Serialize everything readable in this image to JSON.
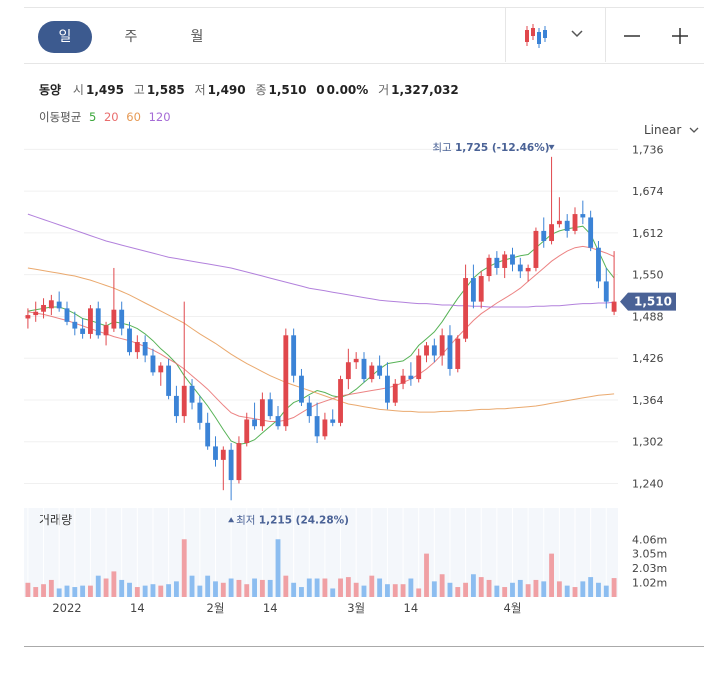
{
  "tabs": [
    {
      "label": "일",
      "active": true
    },
    {
      "label": "주",
      "active": false
    },
    {
      "label": "월",
      "active": false
    }
  ],
  "toolbar": {
    "chart_type_icon": "candlestick-icon",
    "dropdown_icon": "chevron-down-icon",
    "zoom_out_icon": "minus-icon",
    "zoom_in_icon": "plus-icon"
  },
  "stock": {
    "name": "동양",
    "open_label": "시",
    "open": "1,495",
    "high_label": "고",
    "high": "1,585",
    "low_label": "저",
    "low": "1,490",
    "close_label": "종",
    "close": "1,510",
    "change": "0",
    "change_pct": "0.00%",
    "volume_label": "거",
    "volume": "1,327,032"
  },
  "ma_legend": {
    "label": "이동평균",
    "items": [
      {
        "label": "5",
        "color": "#3aa63a"
      },
      {
        "label": "20",
        "color": "#e96d6d"
      },
      {
        "label": "60",
        "color": "#e69a55"
      },
      {
        "label": "120",
        "color": "#a56bd6"
      }
    ]
  },
  "scale_mode": "Linear",
  "volume_panel_label": "거래량",
  "colors": {
    "up": "#e0474c",
    "down": "#3b83d6",
    "up_vol": "#f0a0a4",
    "down_vol": "#8cbdf0",
    "price_tag": "#4a6296"
  },
  "chart_data": {
    "type": "candlestick",
    "price_axis": {
      "ticks": [
        1736,
        1674,
        1612,
        1550,
        1488,
        1426,
        1364,
        1302,
        1240
      ],
      "tick_labels": [
        "1,736",
        "1,674",
        "1,612",
        "1,550",
        "1,488",
        "1,426",
        "1,364",
        "1,302",
        "1,240"
      ],
      "range": [
        1208,
        1750
      ]
    },
    "volume_axis": {
      "ticks": [
        4.06,
        3.05,
        2.03,
        1.02
      ],
      "tick_labels": [
        "4.06m",
        "3.05m",
        "2.03m",
        "1.02m"
      ],
      "unit": "m",
      "range": [
        0,
        4.5
      ]
    },
    "x_labels": [
      {
        "label": "2022",
        "index": 5
      },
      {
        "label": "14",
        "index": 14
      },
      {
        "label": "2월",
        "index": 24
      },
      {
        "label": "14",
        "index": 31
      },
      {
        "label": "3월",
        "index": 42
      },
      {
        "label": "14",
        "index": 49
      },
      {
        "label": "4월",
        "index": 62
      }
    ],
    "candles": [
      [
        1485,
        1500,
        1470,
        1490,
        1.0
      ],
      [
        1490,
        1510,
        1480,
        1495,
        0.7
      ],
      [
        1495,
        1515,
        1485,
        1505,
        0.9
      ],
      [
        1500,
        1520,
        1490,
        1512,
        1.2
      ],
      [
        1510,
        1525,
        1495,
        1500,
        0.6
      ],
      [
        1500,
        1510,
        1475,
        1480,
        0.8
      ],
      [
        1480,
        1495,
        1460,
        1470,
        0.7
      ],
      [
        1470,
        1485,
        1455,
        1462,
        0.8
      ],
      [
        1462,
        1505,
        1455,
        1500,
        0.8
      ],
      [
        1500,
        1510,
        1455,
        1460,
        1.5
      ],
      [
        1460,
        1480,
        1445,
        1475,
        1.3
      ],
      [
        1470,
        1560,
        1465,
        1498,
        1.8
      ],
      [
        1498,
        1510,
        1460,
        1470,
        1.2
      ],
      [
        1470,
        1480,
        1430,
        1435,
        1.0
      ],
      [
        1435,
        1460,
        1425,
        1450,
        0.7
      ],
      [
        1450,
        1460,
        1420,
        1430,
        0.8
      ],
      [
        1430,
        1440,
        1400,
        1405,
        0.9
      ],
      [
        1405,
        1420,
        1385,
        1415,
        0.8
      ],
      [
        1415,
        1425,
        1365,
        1370,
        0.9
      ],
      [
        1370,
        1385,
        1330,
        1340,
        1.1
      ],
      [
        1340,
        1510,
        1330,
        1385,
        4.06
      ],
      [
        1385,
        1395,
        1350,
        1360,
        1.5
      ],
      [
        1360,
        1370,
        1320,
        1330,
        0.8
      ],
      [
        1330,
        1345,
        1290,
        1295,
        1.5
      ],
      [
        1295,
        1310,
        1265,
        1275,
        1.1
      ],
      [
        1275,
        1295,
        1230,
        1290,
        1.0
      ],
      [
        1290,
        1300,
        1215,
        1245,
        1.3
      ],
      [
        1245,
        1310,
        1240,
        1300,
        1.2
      ],
      [
        1300,
        1345,
        1295,
        1335,
        0.9
      ],
      [
        1335,
        1360,
        1320,
        1325,
        1.3
      ],
      [
        1325,
        1375,
        1318,
        1365,
        1.2
      ],
      [
        1365,
        1375,
        1335,
        1340,
        1.2
      ],
      [
        1340,
        1355,
        1320,
        1325,
        4.06
      ],
      [
        1325,
        1470,
        1318,
        1460,
        1.5
      ],
      [
        1460,
        1470,
        1390,
        1400,
        1.0
      ],
      [
        1400,
        1410,
        1355,
        1360,
        0.7
      ],
      [
        1360,
        1370,
        1330,
        1340,
        1.3
      ],
      [
        1340,
        1360,
        1300,
        1310,
        1.3
      ],
      [
        1310,
        1345,
        1305,
        1335,
        1.3
      ],
      [
        1335,
        1350,
        1325,
        1330,
        0.6
      ],
      [
        1330,
        1400,
        1325,
        1395,
        1.3
      ],
      [
        1395,
        1440,
        1380,
        1420,
        1.4
      ],
      [
        1420,
        1435,
        1410,
        1425,
        1.0
      ],
      [
        1425,
        1435,
        1390,
        1395,
        0.8
      ],
      [
        1395,
        1420,
        1390,
        1415,
        1.5
      ],
      [
        1415,
        1430,
        1395,
        1400,
        1.3
      ],
      [
        1400,
        1420,
        1350,
        1360,
        0.9
      ],
      [
        1360,
        1395,
        1355,
        1388,
        0.9
      ],
      [
        1388,
        1410,
        1380,
        1400,
        0.9
      ],
      [
        1400,
        1420,
        1385,
        1395,
        1.3
      ],
      [
        1395,
        1440,
        1390,
        1430,
        0.6
      ],
      [
        1430,
        1450,
        1420,
        1445,
        3.05
      ],
      [
        1445,
        1455,
        1420,
        1430,
        1.1
      ],
      [
        1430,
        1470,
        1415,
        1460,
        1.6
      ],
      [
        1460,
        1475,
        1400,
        1410,
        1.0
      ],
      [
        1410,
        1460,
        1405,
        1455,
        0.7
      ],
      [
        1455,
        1565,
        1450,
        1545,
        1.0
      ],
      [
        1545,
        1565,
        1500,
        1510,
        1.6
      ],
      [
        1510,
        1555,
        1500,
        1548,
        1.4
      ],
      [
        1548,
        1580,
        1540,
        1575,
        1.2
      ],
      [
        1575,
        1585,
        1550,
        1560,
        0.8
      ],
      [
        1560,
        1585,
        1545,
        1580,
        0.7
      ],
      [
        1580,
        1590,
        1555,
        1565,
        1.0
      ],
      [
        1565,
        1575,
        1545,
        1555,
        1.2
      ],
      [
        1555,
        1565,
        1540,
        1560,
        0.9
      ],
      [
        1560,
        1620,
        1555,
        1615,
        1.2
      ],
      [
        1615,
        1635,
        1590,
        1600,
        1.1
      ],
      [
        1600,
        1725,
        1595,
        1625,
        3.05
      ],
      [
        1625,
        1665,
        1620,
        1630,
        1.1
      ],
      [
        1630,
        1640,
        1605,
        1615,
        0.8
      ],
      [
        1615,
        1650,
        1610,
        1640,
        0.7
      ],
      [
        1640,
        1660,
        1625,
        1635,
        1.1
      ],
      [
        1635,
        1645,
        1585,
        1590,
        1.4
      ],
      [
        1590,
        1600,
        1530,
        1540,
        1.0
      ],
      [
        1540,
        1560,
        1500,
        1510,
        0.8
      ],
      [
        1495,
        1585,
        1490,
        1510,
        1.33
      ]
    ],
    "ma_lines": {
      "ma5": [
        1496,
        1498,
        1500,
        1502,
        1502,
        1498,
        1492,
        1485,
        1482,
        1478,
        1474,
        1480,
        1478,
        1475,
        1470,
        1462,
        1452,
        1440,
        1430,
        1418,
        1400,
        1385,
        1370,
        1355,
        1338,
        1320,
        1303,
        1298,
        1300,
        1305,
        1315,
        1325,
        1335,
        1350,
        1360,
        1365,
        1372,
        1378,
        1375,
        1370,
        1368,
        1372,
        1380,
        1390,
        1400,
        1410,
        1418,
        1420,
        1422,
        1430,
        1445,
        1455,
        1465,
        1480,
        1498,
        1515,
        1530,
        1545,
        1555,
        1562,
        1568,
        1572,
        1575,
        1578,
        1580,
        1590,
        1600,
        1610,
        1615,
        1618,
        1620,
        1622,
        1610,
        1585,
        1560,
        1545
      ],
      "ma20": [
        1495,
        1493,
        1491,
        1488,
        1485,
        1482,
        1478,
        1474,
        1470,
        1466,
        1462,
        1458,
        1455,
        1452,
        1448,
        1443,
        1438,
        1432,
        1425,
        1418,
        1410,
        1400,
        1390,
        1380,
        1368,
        1356,
        1345,
        1340,
        1338,
        1336,
        1334,
        1332,
        1332,
        1334,
        1338,
        1345,
        1352,
        1358,
        1362,
        1366,
        1370,
        1372,
        1374,
        1376,
        1378,
        1380,
        1382,
        1385,
        1390,
        1395,
        1402,
        1410,
        1420,
        1432,
        1445,
        1458,
        1470,
        1482,
        1492,
        1500,
        1508,
        1515,
        1522,
        1530,
        1540,
        1550,
        1560,
        1570,
        1578,
        1585,
        1590,
        1592,
        1590,
        1586,
        1582,
        1577
      ],
      "ma60": [
        1560,
        1558,
        1556,
        1554,
        1552,
        1550,
        1548,
        1545,
        1542,
        1538,
        1534,
        1530,
        1525,
        1520,
        1514,
        1508,
        1502,
        1496,
        1490,
        1484,
        1478,
        1470,
        1462,
        1455,
        1448,
        1440,
        1432,
        1425,
        1418,
        1412,
        1406,
        1400,
        1395,
        1390,
        1386,
        1382,
        1378,
        1374,
        1370,
        1366,
        1362,
        1358,
        1356,
        1354,
        1352,
        1350,
        1349,
        1348,
        1347,
        1347,
        1346,
        1346,
        1346,
        1347,
        1347,
        1348,
        1348,
        1349,
        1350,
        1350,
        1351,
        1351,
        1352,
        1353,
        1354,
        1355,
        1357,
        1359,
        1361,
        1363,
        1365,
        1367,
        1369,
        1371,
        1372,
        1373
      ],
      "ma120": [
        1640,
        1636,
        1632,
        1628,
        1624,
        1620,
        1616,
        1612,
        1608,
        1604,
        1600,
        1597,
        1594,
        1591,
        1588,
        1585,
        1582,
        1579,
        1576,
        1574,
        1572,
        1570,
        1568,
        1566,
        1564,
        1562,
        1560,
        1557,
        1554,
        1551,
        1548,
        1545,
        1542,
        1539,
        1536,
        1533,
        1530,
        1528,
        1526,
        1524,
        1522,
        1520,
        1518,
        1516,
        1514,
        1512,
        1511,
        1510,
        1509,
        1508,
        1507,
        1507,
        1506,
        1505,
        1505,
        1504,
        1504,
        1503,
        1503,
        1502,
        1502,
        1502,
        1502,
        1502,
        1502,
        1503,
        1503,
        1504,
        1504,
        1505,
        1506,
        1507,
        1507,
        1508,
        1508,
        1509
      ]
    },
    "annotations": {
      "high": {
        "label": "최고",
        "value": "1,725 (-12.46%)",
        "index": 67,
        "price": 1725
      },
      "low": {
        "label": "최저",
        "value": "1,215 (24.28%)",
        "index": 26,
        "price": 1215
      },
      "last": {
        "label": "1,510",
        "price": 1510
      }
    }
  }
}
